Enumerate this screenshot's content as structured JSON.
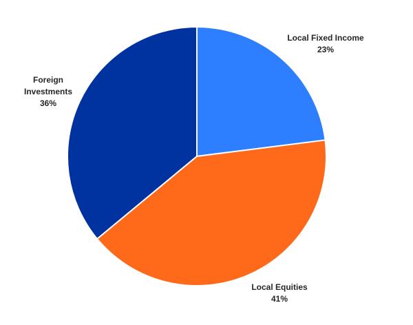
{
  "chart_data": {
    "type": "pie",
    "title": "",
    "slices": [
      {
        "label": "Local Fixed Income",
        "value": 23,
        "value_label": "23%",
        "color": "#2e7fff"
      },
      {
        "label": "Local Equities",
        "value": 41,
        "value_label": "41%",
        "color": "#ff6a1a"
      },
      {
        "label": "Foreign Investments",
        "label_lines": [
          "Foreign",
          "Investments"
        ],
        "value": 36,
        "value_label": "36%",
        "color": "#0033a0"
      }
    ],
    "start": "12 o'clock",
    "direction": "clockwise",
    "legend": "none",
    "data_labels": "outside"
  }
}
